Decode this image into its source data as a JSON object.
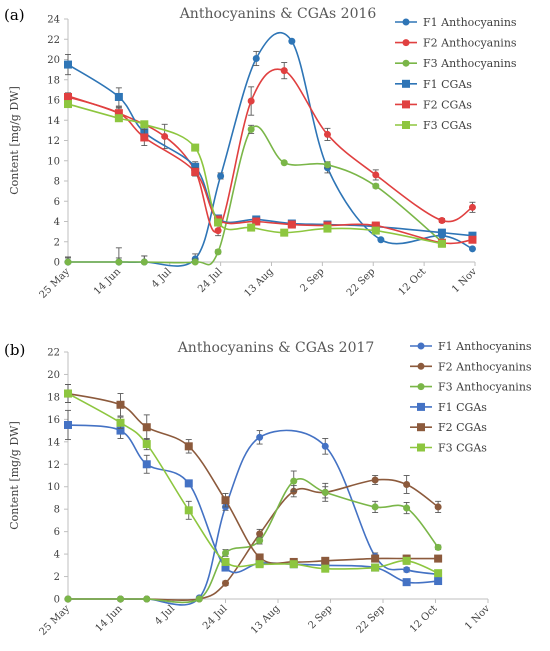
{
  "chart_data": [
    {
      "type": "line",
      "panel_label": "(a)",
      "title": "Anthocyanins & CGAs 2016",
      "ylabel": "Content [mg/g DW]",
      "xlabel": "",
      "ylim": [
        0,
        24
      ],
      "yticks": [
        0,
        2,
        4,
        6,
        8,
        10,
        12,
        14,
        16,
        18,
        20,
        22,
        24
      ],
      "xlim": [
        "2016-05-25",
        "2016-11-01"
      ],
      "xticks": [
        "25 May",
        "14 Jun",
        "4 Jul",
        "24 Jul",
        "13 Aug",
        "2 Sep",
        "22 Sep",
        "12 Oct",
        "1 Nov"
      ],
      "xtick_dates": [
        "2016-05-25",
        "2016-06-14",
        "2016-07-04",
        "2016-07-24",
        "2016-08-13",
        "2016-09-02",
        "2016-09-22",
        "2016-10-12",
        "2016-11-01"
      ],
      "legend_position": "top-right",
      "series": [
        {
          "name": "F1 Anthocyanins",
          "color": "#2E75B6",
          "marker": "circle",
          "x": [
            "2016-05-25",
            "2016-06-14",
            "2016-06-24",
            "2016-07-14",
            "2016-07-24",
            "2016-08-07",
            "2016-08-21",
            "2016-09-04",
            "2016-09-25",
            "2016-10-19",
            "2016-10-31"
          ],
          "y": [
            0,
            0,
            0,
            0.3,
            8.5,
            20.1,
            21.8,
            9.3,
            2.2,
            2.6,
            1.3
          ],
          "err": [
            0.4,
            1.4,
            0.6,
            0.5,
            0.3,
            0.7,
            0,
            0.5,
            0,
            0,
            0
          ]
        },
        {
          "name": "F2 Anthocyanins",
          "color": "#E04040",
          "marker": "circle",
          "x": [
            "2016-05-25",
            "2016-06-14",
            "2016-07-02",
            "2016-07-14",
            "2016-07-23",
            "2016-08-05",
            "2016-08-18",
            "2016-09-04",
            "2016-09-23",
            "2016-10-19",
            "2016-10-31"
          ],
          "y": [
            16.4,
            14.7,
            12.4,
            9,
            3.1,
            15.9,
            18.9,
            12.6,
            8.6,
            4.1,
            5.4
          ],
          "err": [
            0.3,
            0.6,
            1.2,
            0.5,
            0.5,
            1.4,
            0.8,
            0.6,
            0.5,
            0.2,
            0.5
          ]
        },
        {
          "name": "F3 Anthocyanins",
          "color": "#7AB648",
          "marker": "circle",
          "x": [
            "2016-05-25",
            "2016-06-14",
            "2016-06-24",
            "2016-07-14",
            "2016-07-23",
            "2016-08-05",
            "2016-08-18",
            "2016-09-04",
            "2016-09-23",
            "2016-10-19"
          ],
          "y": [
            0,
            0,
            0,
            0,
            1,
            13.1,
            9.8,
            9.6,
            7.5,
            2
          ],
          "err": [
            0.5,
            0.4,
            0.6,
            0.3,
            0.2,
            0.4,
            0,
            0.3,
            0.2,
            0.2
          ]
        },
        {
          "name": "F1 CGAs",
          "color": "#2E75B6",
          "marker": "square",
          "x": [
            "2016-05-25",
            "2016-06-14",
            "2016-06-24",
            "2016-07-14",
            "2016-07-23",
            "2016-08-07",
            "2016-08-21",
            "2016-09-04",
            "2016-09-23",
            "2016-10-19",
            "2016-10-31"
          ],
          "y": [
            19.5,
            16.3,
            12.8,
            9.4,
            4.3,
            4.2,
            3.8,
            3.7,
            3.5,
            2.9,
            2.6
          ],
          "err": [
            1.0,
            0.9,
            0.6,
            0.5,
            0.3,
            0.2,
            0.2,
            0.2,
            0.2,
            0.2,
            0.2
          ]
        },
        {
          "name": "F2 CGAs",
          "color": "#E04040",
          "marker": "square",
          "x": [
            "2016-05-25",
            "2016-06-14",
            "2016-06-24",
            "2016-07-14",
            "2016-07-23",
            "2016-08-07",
            "2016-08-21",
            "2016-09-04",
            "2016-09-23",
            "2016-10-19",
            "2016-10-31"
          ],
          "y": [
            16.3,
            14.7,
            12.3,
            8.9,
            4.2,
            4.0,
            3.7,
            3.6,
            3.6,
            1.9,
            2.2
          ],
          "err": [
            0.4,
            0.5,
            0.8,
            0.4,
            0.2,
            0.2,
            0.2,
            0.2,
            0.2,
            0.2,
            0.2
          ]
        },
        {
          "name": "F3 CGAs",
          "color": "#8DC63F",
          "marker": "square",
          "x": [
            "2016-05-25",
            "2016-06-14",
            "2016-06-24",
            "2016-07-14",
            "2016-07-23",
            "2016-08-05",
            "2016-08-18",
            "2016-09-04",
            "2016-09-23",
            "2016-10-19"
          ],
          "y": [
            15.6,
            14.2,
            13.6,
            11.3,
            3.9,
            3.4,
            2.9,
            3.3,
            3.1,
            1.8
          ],
          "err": [
            0.3,
            0.3,
            0.3,
            0.3,
            0.2,
            0.2,
            0.2,
            0.2,
            0.2,
            0.2
          ]
        }
      ]
    },
    {
      "type": "line",
      "panel_label": "(b)",
      "title": "Anthocyanins & CGAs 2017",
      "ylabel": "Content [mg/g DW]",
      "xlabel": "",
      "ylim": [
        0,
        22
      ],
      "yticks": [
        0,
        2,
        4,
        6,
        8,
        10,
        12,
        14,
        16,
        18,
        20,
        22
      ],
      "xlim": [
        "2017-05-25",
        "2017-11-01"
      ],
      "xticks": [
        "25 May",
        "14 Jun",
        "4 Jul",
        "24 Jul",
        "13 Aug",
        "2 Sep",
        "22 Sep",
        "12 Oct",
        "1 Nov"
      ],
      "xtick_dates": [
        "2017-05-25",
        "2017-06-14",
        "2017-07-04",
        "2017-07-24",
        "2017-08-13",
        "2017-09-02",
        "2017-09-22",
        "2017-10-12",
        "2017-11-01"
      ],
      "legend_position": "top-right",
      "series": [
        {
          "name": "F1 Anthocyanins",
          "color": "#4472C4",
          "marker": "circle",
          "x": [
            "2017-05-25",
            "2017-06-14",
            "2017-06-24",
            "2017-07-14",
            "2017-07-24",
            "2017-08-06",
            "2017-08-31",
            "2017-09-19",
            "2017-10-01",
            "2017-10-13"
          ],
          "y": [
            0,
            0,
            0,
            0.1,
            8.2,
            14.4,
            13.6,
            3.8,
            2.6,
            2.2
          ],
          "err": [
            0,
            0,
            0,
            0,
            0.3,
            0.6,
            0.7,
            0.3,
            0.2,
            0.2
          ]
        },
        {
          "name": "F2 Anthocyanins",
          "color": "#8C5A3C",
          "marker": "circle",
          "x": [
            "2017-05-25",
            "2017-06-14",
            "2017-06-24",
            "2017-07-14",
            "2017-07-24",
            "2017-08-06",
            "2017-08-19",
            "2017-08-31",
            "2017-09-19",
            "2017-10-01",
            "2017-10-13"
          ],
          "y": [
            0,
            0,
            0,
            0,
            1.4,
            5.8,
            9.6,
            9.5,
            10.6,
            10.2,
            8.2
          ],
          "err": [
            0,
            0,
            0,
            0,
            0.2,
            0.4,
            0.5,
            0.5,
            0.4,
            0.8,
            0.5
          ]
        },
        {
          "name": "F3 Anthocyanins",
          "color": "#7AB648",
          "marker": "circle",
          "x": [
            "2017-05-25",
            "2017-06-14",
            "2017-06-24",
            "2017-07-14",
            "2017-07-24",
            "2017-08-06",
            "2017-08-19",
            "2017-08-31",
            "2017-09-19",
            "2017-10-01",
            "2017-10-13"
          ],
          "y": [
            0,
            0,
            0,
            0,
            4.1,
            5.2,
            10.5,
            9.5,
            8.2,
            8.1,
            4.6
          ],
          "err": [
            0,
            0,
            0,
            0,
            0.3,
            0.3,
            0.9,
            0.8,
            0.5,
            0.5,
            0.2
          ]
        },
        {
          "name": "F1 CGAs",
          "color": "#4472C4",
          "marker": "square",
          "x": [
            "2017-05-25",
            "2017-06-14",
            "2017-06-24",
            "2017-07-10",
            "2017-07-24",
            "2017-08-06",
            "2017-08-19",
            "2017-08-31",
            "2017-09-19",
            "2017-10-01",
            "2017-10-13"
          ],
          "y": [
            15.5,
            15,
            12,
            10.3,
            2.8,
            3.2,
            3.1,
            3.0,
            2.8,
            1.5,
            1.6
          ],
          "err": [
            1.3,
            0.7,
            0.8,
            0.3,
            0.3,
            0.3,
            0.3,
            0.2,
            0.2,
            0.2,
            0.2
          ]
        },
        {
          "name": "F2 CGAs",
          "color": "#8C5A3C",
          "marker": "square",
          "x": [
            "2017-05-25",
            "2017-06-14",
            "2017-06-24",
            "2017-07-10",
            "2017-07-24",
            "2017-08-06",
            "2017-08-19",
            "2017-08-31",
            "2017-09-19",
            "2017-10-01",
            "2017-10-13"
          ],
          "y": [
            18.3,
            17.3,
            15.3,
            13.6,
            8.8,
            3.7,
            3.3,
            3.4,
            3.6,
            3.6,
            3.6
          ],
          "err": [
            0.8,
            1.0,
            1.1,
            0.6,
            0.6,
            0.3,
            0.2,
            0.2,
            0.3,
            0.3,
            0.2
          ]
        },
        {
          "name": "F3 CGAs",
          "color": "#8DC63F",
          "marker": "square",
          "x": [
            "2017-05-25",
            "2017-06-14",
            "2017-06-24",
            "2017-07-10",
            "2017-07-24",
            "2017-08-06",
            "2017-08-19",
            "2017-08-31",
            "2017-09-19",
            "2017-10-01",
            "2017-10-13"
          ],
          "y": [
            18.3,
            15.7,
            13.8,
            7.9,
            3.3,
            3.1,
            3.1,
            2.7,
            2.8,
            3.4,
            2.3
          ],
          "err": [
            0.8,
            0.5,
            0.5,
            0.8,
            0.3,
            0.2,
            0.2,
            0.2,
            0.2,
            0.3,
            0.2
          ]
        }
      ]
    }
  ]
}
